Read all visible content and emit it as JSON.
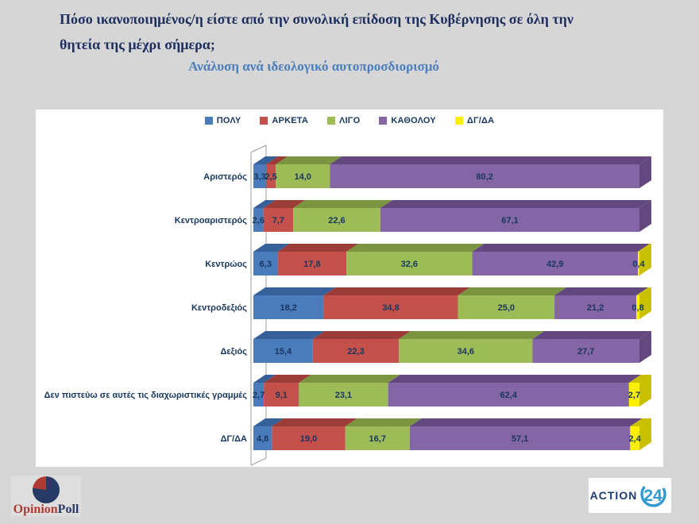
{
  "header": {
    "title_line1": "Πόσο ικανοποιημένος/η είστε από την συνολική επίδοση της Κυβέρνησης σε όλη την",
    "title_line2": "θητεία της μέχρι σήμερα;",
    "subtitle": "Ανάλυση ανά ιδεολογικό αυτοπροσδιορισμό"
  },
  "chart_data": {
    "type": "bar",
    "variant": "horizontal-stacked-3d",
    "title": "Πόσο ικανοποιημένος/η είστε από την συνολική επίδοση της Κυβέρνησης σε όλη την θητεία της μέχρι σήμερα;",
    "subtitle": "Ανάλυση ανά ιδεολογικό αυτοπροσδιορισμό",
    "unit": "percent",
    "decimal_separator": ",",
    "xlim": [
      0,
      100
    ],
    "legend_position": "top",
    "categories": [
      "Αριστερός",
      "Κεντροαριστερός",
      "Κεντρώος",
      "Κεντροδεξιός",
      "Δεξιός",
      "Δεν πιστεύω σε αυτές τις διαχωριστικές γραμμές",
      "ΔΓ/ΔΑ"
    ],
    "series": [
      {
        "name": "ΠΟΛΥ",
        "color": "#4a7cbc",
        "dark": "#36609a",
        "values": [
          3.3,
          2.6,
          6.3,
          18.2,
          15.4,
          2.7,
          4.8
        ]
      },
      {
        "name": "ΑΡΚΕΤΑ",
        "color": "#c4504c",
        "dark": "#9c3c39",
        "values": [
          2.5,
          7.7,
          17.8,
          34.8,
          22.3,
          9.1,
          19.0
        ]
      },
      {
        "name": "ΛΙΓΟ",
        "color": "#9dbb57",
        "dark": "#7a943f",
        "values": [
          14.0,
          22.6,
          32.6,
          25.0,
          34.6,
          23.1,
          16.7
        ]
      },
      {
        "name": "ΚΑΘΟΛΟΥ",
        "color": "#8465a5",
        "dark": "#62487e",
        "values": [
          80.2,
          67.1,
          42.9,
          21.2,
          27.7,
          62.4,
          57.1
        ]
      },
      {
        "name": "ΔΓ/ΔΑ",
        "color": "#fcf000",
        "dark": "#c9c000",
        "values": [
          null,
          null,
          0.4,
          0.8,
          null,
          2.7,
          2.4
        ]
      }
    ]
  },
  "footer": {
    "opinionpoll": {
      "word1": "Opinion",
      "word2": "Poll"
    },
    "action24": {
      "word": "ACTION",
      "number": "24"
    }
  }
}
